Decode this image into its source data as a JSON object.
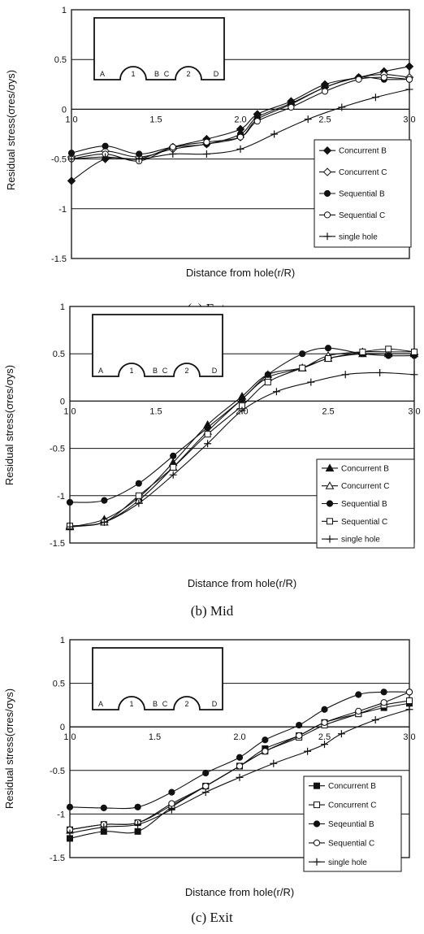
{
  "chart_data": [
    {
      "type": "line",
      "caption": "(a) Entry",
      "xlabel": "Distance from hole(r/R)",
      "ylabel": "Residual stress(σres/σys)",
      "xlim": [
        1.0,
        3.0
      ],
      "ylim": [
        -1.5,
        1.0
      ],
      "xticks": [
        "1.0",
        "1.5",
        "2.0",
        "2.5",
        "3.0"
      ],
      "yticks": [
        "1",
        "0.5",
        "0",
        "-0.5",
        "-1",
        "-1.5"
      ],
      "grid": "horizontal",
      "legend_position": "lower-right",
      "inset_labels": [
        "A",
        "1",
        "B",
        "C",
        "2",
        "D"
      ],
      "series": [
        {
          "name": "Concurrent B",
          "marker": "diamond-filled",
          "x": [
            1.0,
            1.2,
            1.4,
            1.6,
            1.8,
            2.0,
            2.1,
            2.3,
            2.5,
            2.7,
            2.85,
            3.0
          ],
          "y": [
            -0.72,
            -0.5,
            -0.5,
            -0.38,
            -0.3,
            -0.2,
            -0.05,
            0.08,
            0.25,
            0.32,
            0.38,
            0.43
          ]
        },
        {
          "name": "Concurrent C",
          "marker": "diamond-open",
          "x": [
            1.0,
            1.2,
            1.4,
            1.6,
            1.8,
            2.0,
            2.1,
            2.3,
            2.5,
            2.7,
            2.85,
            3.0
          ],
          "y": [
            -0.48,
            -0.42,
            -0.48,
            -0.4,
            -0.35,
            -0.28,
            -0.1,
            0.05,
            0.22,
            0.32,
            0.35,
            0.32
          ]
        },
        {
          "name": "Sequential B",
          "marker": "circle-filled",
          "x": [
            1.0,
            1.2,
            1.4,
            1.6,
            1.8,
            2.0,
            2.1,
            2.3,
            2.5,
            2.7,
            2.85,
            3.0
          ],
          "y": [
            -0.44,
            -0.37,
            -0.45,
            -0.38,
            -0.35,
            -0.25,
            -0.08,
            0.06,
            0.22,
            0.32,
            0.3,
            0.3
          ]
        },
        {
          "name": "Sequential C",
          "marker": "circle-open",
          "x": [
            1.0,
            1.2,
            1.4,
            1.6,
            1.8,
            2.0,
            2.1,
            2.3,
            2.5,
            2.7,
            2.85,
            3.0
          ],
          "y": [
            -0.5,
            -0.45,
            -0.52,
            -0.38,
            -0.33,
            -0.28,
            -0.12,
            0.02,
            0.18,
            0.3,
            0.32,
            0.3
          ]
        },
        {
          "name": "single hole",
          "marker": "plus",
          "x": [
            1.0,
            1.2,
            1.4,
            1.6,
            1.8,
            2.0,
            2.2,
            2.4,
            2.6,
            2.8,
            3.0
          ],
          "y": [
            -0.5,
            -0.48,
            -0.5,
            -0.45,
            -0.45,
            -0.4,
            -0.25,
            -0.1,
            0.02,
            0.12,
            0.2
          ]
        }
      ]
    },
    {
      "type": "line",
      "caption": "(b) Mid",
      "xlabel": "Distance from hole(r/R)",
      "ylabel": "Residual stress(σres/σys)",
      "xlim": [
        1.0,
        3.0
      ],
      "ylim": [
        -1.5,
        1.0
      ],
      "xticks": [
        "1.0",
        "1.5",
        "2.0",
        "2.5",
        "3.0"
      ],
      "yticks": [
        "1",
        "0.5",
        "0",
        "-0.5",
        "-1",
        "-1.5"
      ],
      "grid": "horizontal",
      "legend_position": "lower-right",
      "inset_labels": [
        "A",
        "1",
        "B",
        "C",
        "2",
        "D"
      ],
      "series": [
        {
          "name": "Concurrent B",
          "marker": "triangle-filled",
          "x": [
            1.0,
            1.2,
            1.4,
            1.6,
            1.8,
            2.0,
            2.15,
            2.35,
            2.5,
            2.7,
            2.85,
            3.0
          ],
          "y": [
            -1.33,
            -1.25,
            -1.02,
            -0.65,
            -0.25,
            0.05,
            0.28,
            0.35,
            0.45,
            0.5,
            0.5,
            0.5
          ]
        },
        {
          "name": "Concurrent C",
          "marker": "triangle-open",
          "x": [
            1.0,
            1.2,
            1.4,
            1.6,
            1.8,
            2.0,
            2.15,
            2.35,
            2.5,
            2.7,
            2.85,
            3.0
          ],
          "y": [
            -1.32,
            -1.28,
            -1.05,
            -0.7,
            -0.32,
            0.02,
            0.25,
            0.35,
            0.48,
            0.52,
            0.52,
            0.52
          ]
        },
        {
          "name": "Sequential B",
          "marker": "circle-filled",
          "x": [
            1.0,
            1.2,
            1.4,
            1.6,
            1.8,
            2.0,
            2.15,
            2.35,
            2.5,
            2.7,
            2.85,
            3.0
          ],
          "y": [
            -1.07,
            -1.05,
            -0.87,
            -0.58,
            -0.28,
            0.02,
            0.28,
            0.5,
            0.56,
            0.5,
            0.48,
            0.48
          ]
        },
        {
          "name": "Sequential C",
          "marker": "square-open",
          "x": [
            1.0,
            1.2,
            1.4,
            1.6,
            1.8,
            2.0,
            2.15,
            2.35,
            2.5,
            2.7,
            2.85,
            3.0
          ],
          "y": [
            -1.32,
            -1.28,
            -1.0,
            -0.7,
            -0.35,
            -0.05,
            0.2,
            0.35,
            0.45,
            0.52,
            0.55,
            0.52
          ]
        },
        {
          "name": "single hole",
          "marker": "plus",
          "x": [
            1.0,
            1.2,
            1.4,
            1.6,
            1.8,
            2.0,
            2.2,
            2.4,
            2.6,
            2.8,
            3.0
          ],
          "y": [
            -1.33,
            -1.28,
            -1.08,
            -0.78,
            -0.45,
            -0.1,
            0.1,
            0.2,
            0.28,
            0.3,
            0.28
          ]
        }
      ]
    },
    {
      "type": "line",
      "caption": "(c) Exit",
      "xlabel": "Distance from hole(r/R)",
      "ylabel": "Residual stress(σres/σys)",
      "xlim": [
        1.0,
        3.0
      ],
      "ylim": [
        -1.5,
        1.0
      ],
      "xticks": [
        "1.0",
        "1.5",
        "2.0",
        "2.5",
        "3.0"
      ],
      "yticks": [
        "1",
        "0.5",
        "0",
        "-0.5",
        "-1",
        "-1.5"
      ],
      "grid": "horizontal",
      "legend_position": "lower-right",
      "inset_labels": [
        "A",
        "1",
        "B",
        "C",
        "2",
        "D"
      ],
      "series": [
        {
          "name": "Concurrent B",
          "marker": "square-filled",
          "x": [
            1.0,
            1.2,
            1.4,
            1.6,
            1.8,
            2.0,
            2.15,
            2.35,
            2.5,
            2.7,
            2.85,
            3.0
          ],
          "y": [
            -1.28,
            -1.2,
            -1.2,
            -0.92,
            -0.68,
            -0.45,
            -0.25,
            -0.1,
            0.05,
            0.15,
            0.22,
            0.27
          ]
        },
        {
          "name": "Concurrent C",
          "marker": "square-open",
          "x": [
            1.0,
            1.2,
            1.4,
            1.6,
            1.8,
            2.0,
            2.15,
            2.35,
            2.5,
            2.7,
            2.85,
            3.0
          ],
          "y": [
            -1.18,
            -1.12,
            -1.1,
            -0.9,
            -0.68,
            -0.45,
            -0.28,
            -0.12,
            0.02,
            0.15,
            0.25,
            0.3
          ]
        },
        {
          "name": "Seqeuntial B",
          "marker": "circle-filled",
          "x": [
            1.0,
            1.2,
            1.4,
            1.6,
            1.8,
            2.0,
            2.15,
            2.35,
            2.5,
            2.7,
            2.85,
            3.0
          ],
          "y": [
            -0.92,
            -0.93,
            -0.92,
            -0.75,
            -0.53,
            -0.35,
            -0.15,
            0.02,
            0.2,
            0.37,
            0.4,
            0.4
          ]
        },
        {
          "name": "Sequential C",
          "marker": "circle-open",
          "x": [
            1.0,
            1.2,
            1.4,
            1.6,
            1.8,
            2.0,
            2.15,
            2.35,
            2.5,
            2.7,
            2.85,
            3.0
          ],
          "y": [
            -1.18,
            -1.12,
            -1.1,
            -0.88,
            -0.68,
            -0.45,
            -0.28,
            -0.1,
            0.05,
            0.18,
            0.28,
            0.4
          ]
        },
        {
          "name": "single hole",
          "marker": "plus",
          "x": [
            1.0,
            1.2,
            1.4,
            1.6,
            1.8,
            2.0,
            2.2,
            2.4,
            2.5,
            2.6,
            2.8,
            3.0
          ],
          "y": [
            -1.22,
            -1.15,
            -1.12,
            -0.95,
            -0.75,
            -0.58,
            -0.42,
            -0.28,
            -0.2,
            -0.08,
            0.08,
            0.2
          ]
        }
      ]
    }
  ]
}
